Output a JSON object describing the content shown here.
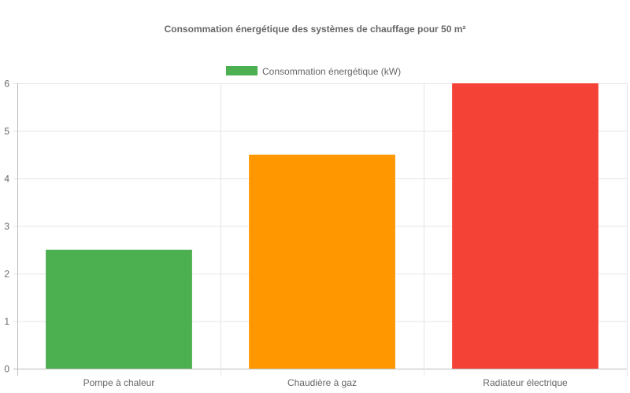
{
  "chart_data": {
    "type": "bar",
    "title": "Consommation énergétique des systèmes de chauffage pour 50 m²",
    "categories": [
      "Pompe à chaleur",
      "Chaudière à gaz",
      "Radiateur électrique"
    ],
    "series": [
      {
        "name": "Consommation énergétique (kW)",
        "values": [
          2.5,
          4.5,
          6
        ],
        "colors": [
          "#4caf50",
          "#ff9800",
          "#f44336"
        ]
      }
    ],
    "legend_color": "#4caf50",
    "xlabel": "",
    "ylabel": "",
    "ylim": [
      0,
      6
    ],
    "yticks": [
      "0",
      "1",
      "2",
      "3",
      "4",
      "5",
      "6"
    ],
    "grid": true,
    "legend_position": "top"
  }
}
